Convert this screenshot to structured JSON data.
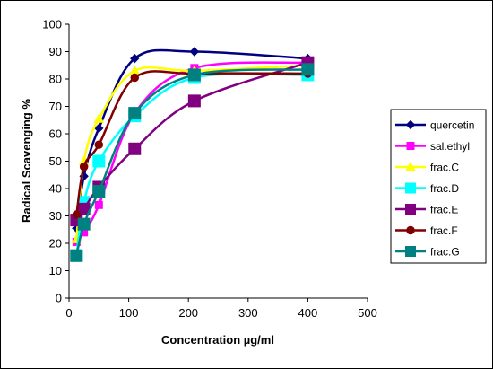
{
  "chart_data": {
    "type": "line",
    "title": "",
    "xlabel": "Concentration µg/ml",
    "ylabel": "Radical Scavenging %",
    "xlim": [
      0,
      500
    ],
    "ylim": [
      0,
      100
    ],
    "xticks": [
      0,
      100,
      200,
      300,
      400,
      500
    ],
    "yticks": [
      0,
      10,
      20,
      30,
      40,
      50,
      60,
      70,
      80,
      90,
      100
    ],
    "grid": false,
    "smooth": true,
    "legend_position": "right",
    "series": [
      {
        "name": "quercetin",
        "marker": "diamond",
        "color": "#000080",
        "x": [
          12.5,
          25,
          50,
          110,
          210,
          400
        ],
        "y": [
          25.5,
          44.5,
          62,
          87.5,
          90,
          87.5
        ]
      },
      {
        "name": "sal.ethyl",
        "marker": "square",
        "color": "#ff00ff",
        "x": [
          12.5,
          25,
          50,
          110,
          210,
          400
        ],
        "y": [
          20.5,
          24,
          34,
          67.5,
          84,
          86
        ]
      },
      {
        "name": "frac.C",
        "marker": "triangle",
        "color": "#ffff00",
        "x": [
          12.5,
          25,
          50,
          110,
          210,
          400
        ],
        "y": [
          21.5,
          50,
          65.5,
          83,
          83,
          85
        ]
      },
      {
        "name": "frac.D",
        "marker": "square",
        "color": "#00ffff",
        "x": [
          12.5,
          25,
          50,
          110,
          210,
          400
        ],
        "y": [
          15.5,
          35,
          50,
          66.5,
          80.5,
          81.5
        ]
      },
      {
        "name": "frac.E",
        "marker": "square",
        "color": "#800080",
        "x": [
          12.5,
          25,
          50,
          110,
          210,
          400
        ],
        "y": [
          28.5,
          32.5,
          40.5,
          54.5,
          72,
          86
        ]
      },
      {
        "name": "frac.F",
        "marker": "circle",
        "color": "#800000",
        "x": [
          12.5,
          25,
          50,
          110,
          210,
          400
        ],
        "y": [
          30.5,
          48,
          56,
          80.5,
          82,
          82
        ]
      },
      {
        "name": "frac.G",
        "marker": "square",
        "color": "#008080",
        "x": [
          12.5,
          25,
          50,
          110,
          210,
          400
        ],
        "y": [
          15.5,
          27,
          39,
          67.5,
          81.5,
          83.5
        ]
      }
    ]
  }
}
